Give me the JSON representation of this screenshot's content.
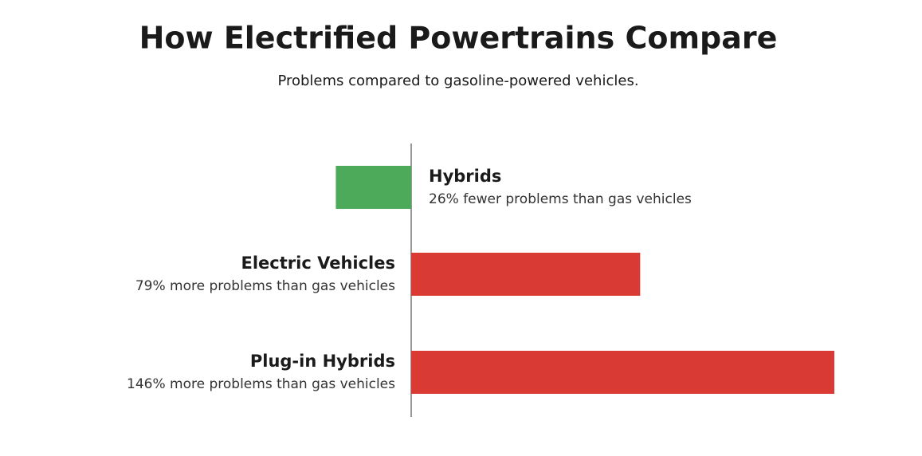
{
  "chart_data": {
    "type": "diverging-bar",
    "title": "How Electrified Powertrains Compare",
    "subtitle": "Problems compared to gasoline-powered vehicles.",
    "categories": [
      "Hybrids",
      "Electric Vehicles",
      "Plug-in Hybrids"
    ],
    "values": [
      -26,
      79,
      146
    ],
    "value_labels": [
      "26% fewer problems than gas vehicles",
      "79% more problems than gas vehicles",
      "146% more problems than gas vehicles"
    ],
    "colors": [
      "#4caa5a",
      "#d93a33",
      "#d93a33"
    ]
  }
}
